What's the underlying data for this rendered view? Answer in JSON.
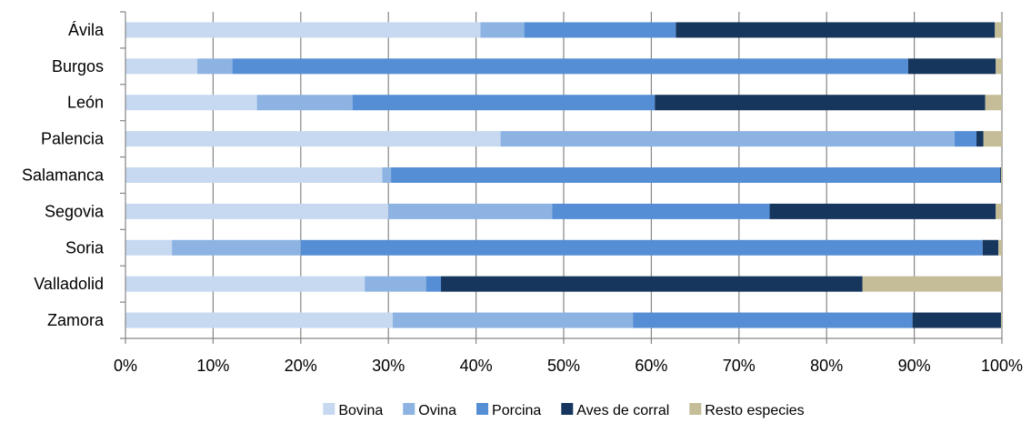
{
  "chart_data": {
    "type": "bar",
    "orientation": "horizontal",
    "stacked": "percent",
    "categories": [
      "Ávila",
      "Burgos",
      "León",
      "Palencia",
      "Salamanca",
      "Segovia",
      "Soria",
      "Valladolid",
      "Zamora"
    ],
    "series": [
      {
        "name": "Bovina",
        "color": "#c6d9f1",
        "values": [
          40.5,
          8.2,
          15.0,
          42.8,
          29.3,
          30.0,
          5.3,
          27.3,
          30.5
        ]
      },
      {
        "name": "Ovina",
        "color": "#8db3e2",
        "values": [
          5.0,
          4.0,
          10.9,
          51.8,
          1.0,
          18.7,
          14.7,
          7.0,
          27.4
        ]
      },
      {
        "name": "Porcina",
        "color": "#558ed5",
        "values": [
          17.3,
          77.1,
          34.5,
          2.5,
          69.5,
          24.8,
          77.8,
          1.7,
          31.9
        ]
      },
      {
        "name": "Aves de corral",
        "color": "#17365d",
        "values": [
          36.4,
          10.0,
          37.7,
          0.8,
          0.1,
          25.8,
          1.8,
          48.1,
          10.1
        ]
      },
      {
        "name": "Resto especies",
        "color": "#c4bd97",
        "values": [
          0.8,
          0.7,
          1.9,
          2.1,
          0.1,
          0.7,
          0.4,
          15.9,
          0.1
        ]
      }
    ],
    "xlim": [
      0,
      100
    ],
    "xticks": [
      "0%",
      "10%",
      "20%",
      "30%",
      "40%",
      "50%",
      "60%",
      "70%",
      "80%",
      "90%",
      "100%"
    ],
    "grid": true,
    "legend_position": "bottom"
  }
}
